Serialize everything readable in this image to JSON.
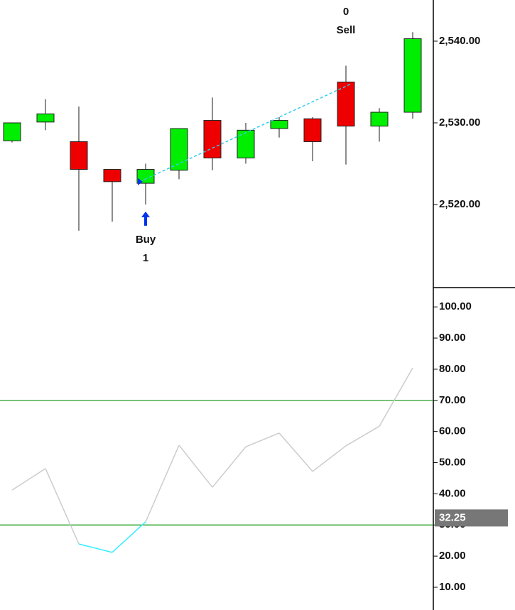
{
  "chart_data": [
    {
      "type": "candlestick",
      "categories": [
        null,
        null,
        null,
        null,
        null,
        null,
        null,
        null,
        null,
        null,
        null,
        null,
        null
      ],
      "open": [
        2527.8,
        2530.1,
        2527.7,
        2524.3,
        2522.6,
        2524.2,
        2530.3,
        2525.7,
        2529.3,
        2530.5,
        2535.0,
        2529.6,
        2531.3
      ],
      "high": [
        2530.0,
        2532.9,
        2532.0,
        2524.3,
        2525.0,
        2529.3,
        2533.1,
        2530.0,
        2530.7,
        2530.7,
        2537.0,
        2531.8,
        2541.1
      ],
      "low": [
        2527.6,
        2529.1,
        2516.8,
        2517.9,
        2520.0,
        2523.1,
        2524.2,
        2525.0,
        2528.2,
        2525.3,
        2524.9,
        2527.7,
        2530.5
      ],
      "close": [
        2530.0,
        2531.1,
        2524.3,
        2522.8,
        2524.3,
        2529.3,
        2525.7,
        2529.1,
        2530.3,
        2527.7,
        2529.6,
        2531.3,
        2540.3
      ],
      "up_color": "#00ee00",
      "down_color": "#ee0000",
      "ylim": [
        2509.83,
        2545.04
      ],
      "yticks": [
        {
          "value": 2520,
          "label": "2,520.00"
        },
        {
          "value": 2530,
          "label": "2,530.00"
        },
        {
          "value": 2540,
          "label": "2,540.00"
        }
      ],
      "trades": [
        {
          "index": 4,
          "price": 2522.8,
          "side": "Buy",
          "qty": "1"
        },
        {
          "index": 10,
          "price": 2534.8,
          "side": "Sell",
          "qty": "0"
        }
      ],
      "trade_line_color": "#33ccee"
    },
    {
      "type": "line",
      "categories": [
        null,
        null,
        null,
        null,
        null,
        null,
        null,
        null,
        null,
        null,
        null,
        null,
        null
      ],
      "values": [
        41.2,
        48.1,
        23.9,
        21.2,
        31.0,
        55.6,
        42.1,
        55.1,
        59.5,
        47.2,
        55.4,
        61.7,
        80.4
      ],
      "color": "#cccccc",
      "low_color": "#33eeff",
      "high_color": "#ee3333",
      "levels": [
        70,
        30
      ],
      "level_color": "#119911",
      "ylim": [
        2.7,
        106.2
      ],
      "yticks": [
        {
          "value": 10,
          "label": "10.00"
        },
        {
          "value": 20,
          "label": "20.00"
        },
        {
          "value": 30,
          "label": "30.00"
        },
        {
          "value": 40,
          "label": "40.00"
        },
        {
          "value": 50,
          "label": "50.00"
        },
        {
          "value": 60,
          "label": "60.00"
        },
        {
          "value": 70,
          "label": "70.00"
        },
        {
          "value": 80,
          "label": "80.00"
        },
        {
          "value": 90,
          "label": "90.00"
        },
        {
          "value": 100,
          "label": "100.00"
        }
      ],
      "marker": {
        "value": 32.25,
        "label": "32.25"
      }
    }
  ]
}
